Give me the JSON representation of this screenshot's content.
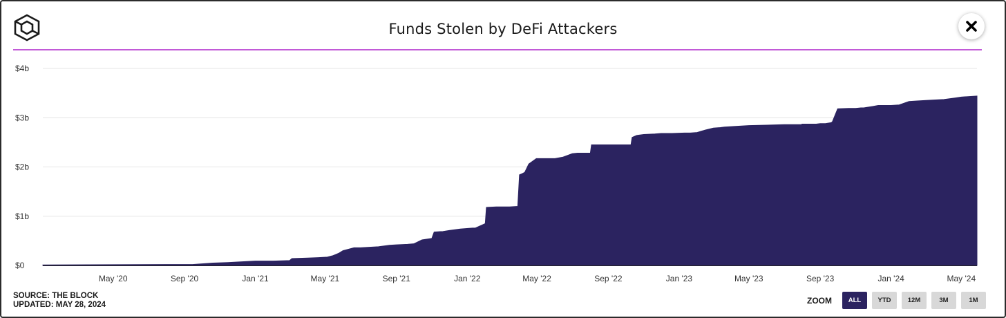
{
  "header": {
    "title": "Funds Stolen by DeFi Attackers",
    "close_icon": "close-icon",
    "logo_icon": "the-block-cube-logo-icon"
  },
  "colors": {
    "area_fill": "#2b2360",
    "accent_line": "#c25ad8",
    "grid": "#e6e6e6",
    "tick_text": "#333333"
  },
  "footer": {
    "source": "SOURCE: THE BLOCK",
    "updated": "UPDATED: MAY 28, 2024"
  },
  "zoom": {
    "label": "ZOOM",
    "options": [
      "ALL",
      "YTD",
      "12M",
      "3M",
      "1M"
    ],
    "selected": "ALL"
  },
  "chart_data": {
    "type": "area",
    "title": "Funds Stolen by DeFi Attackers",
    "xlabel": "",
    "ylabel": "",
    "y_unit": "USD billions",
    "ylim": [
      0,
      4
    ],
    "y_ticks": [
      {
        "value": 0,
        "label": "$0"
      },
      {
        "value": 1,
        "label": "$1b"
      },
      {
        "value": 2,
        "label": "$2b"
      },
      {
        "value": 3,
        "label": "$3b"
      },
      {
        "value": 4,
        "label": "$4b"
      }
    ],
    "xlim": [
      "2020-01-01",
      "2024-05-28"
    ],
    "x_ticks": [
      {
        "date": "2020-05-01",
        "label": "May '20"
      },
      {
        "date": "2020-09-01",
        "label": "Sep '20"
      },
      {
        "date": "2021-01-01",
        "label": "Jan '21"
      },
      {
        "date": "2021-05-01",
        "label": "May '21"
      },
      {
        "date": "2021-09-01",
        "label": "Sep '21"
      },
      {
        "date": "2022-01-01",
        "label": "Jan '22"
      },
      {
        "date": "2022-05-01",
        "label": "May '22"
      },
      {
        "date": "2022-09-01",
        "label": "Sep '22"
      },
      {
        "date": "2023-01-01",
        "label": "Jan '23"
      },
      {
        "date": "2023-05-01",
        "label": "May '23"
      },
      {
        "date": "2023-09-01",
        "label": "Sep '23"
      },
      {
        "date": "2024-01-01",
        "label": "Jan '24"
      },
      {
        "date": "2024-05-01",
        "label": "May '24"
      }
    ],
    "grid": true,
    "legend": "none",
    "series": [
      {
        "x": [
          "2020-01-01",
          "2020-08-01",
          "2020-09-15",
          "2020-10-20",
          "2020-11-15",
          "2020-12-01",
          "2021-01-01",
          "2021-02-01",
          "2021-03-01",
          "2021-03-05",
          "2021-04-01",
          "2021-04-20",
          "2021-05-05",
          "2021-05-15",
          "2021-05-25",
          "2021-06-01",
          "2021-06-20",
          "2021-07-01",
          "2021-08-01",
          "2021-08-20",
          "2021-09-01",
          "2021-09-20",
          "2021-10-01",
          "2021-10-15",
          "2021-11-01",
          "2021-11-05",
          "2021-11-20",
          "2021-12-01",
          "2021-12-20",
          "2022-01-10",
          "2022-01-15",
          "2022-02-01",
          "2022-02-03",
          "2022-02-20",
          "2022-03-15",
          "2022-03-29",
          "2022-04-01",
          "2022-04-05",
          "2022-04-10",
          "2022-04-17",
          "2022-04-30",
          "2022-05-20",
          "2022-06-01",
          "2022-06-15",
          "2022-07-01",
          "2022-07-10",
          "2022-08-01",
          "2022-08-03",
          "2022-08-20",
          "2022-09-01",
          "2022-10-10",
          "2022-10-12",
          "2022-10-20",
          "2022-11-01",
          "2022-11-20",
          "2022-12-01",
          "2022-12-20",
          "2023-01-10",
          "2023-01-20",
          "2023-02-01",
          "2023-02-15",
          "2023-03-01",
          "2023-03-13",
          "2023-03-20",
          "2023-04-01",
          "2023-05-01",
          "2023-06-01",
          "2023-07-01",
          "2023-07-30",
          "2023-08-01",
          "2023-08-15",
          "2023-08-25",
          "2023-09-01",
          "2023-09-10",
          "2023-09-20",
          "2023-09-22",
          "2023-10-01",
          "2023-10-20",
          "2023-11-01",
          "2023-11-10",
          "2023-11-15",
          "2023-12-01",
          "2023-12-10",
          "2023-12-31",
          "2024-01-01",
          "2024-01-15",
          "2024-02-01",
          "2024-02-15",
          "2024-03-01",
          "2024-03-15",
          "2024-04-01",
          "2024-04-20",
          "2024-05-01",
          "2024-05-28"
        ],
        "y": [
          0.01,
          0.02,
          0.02,
          0.05,
          0.06,
          0.07,
          0.09,
          0.09,
          0.1,
          0.14,
          0.15,
          0.16,
          0.17,
          0.2,
          0.25,
          0.3,
          0.36,
          0.36,
          0.38,
          0.41,
          0.42,
          0.43,
          0.44,
          0.52,
          0.55,
          0.68,
          0.69,
          0.71,
          0.74,
          0.76,
          0.76,
          0.85,
          1.18,
          1.19,
          1.19,
          1.2,
          1.84,
          1.86,
          1.89,
          2.06,
          2.17,
          2.17,
          2.17,
          2.2,
          2.27,
          2.28,
          2.28,
          2.45,
          2.45,
          2.45,
          2.45,
          2.6,
          2.64,
          2.66,
          2.67,
          2.68,
          2.68,
          2.69,
          2.69,
          2.7,
          2.75,
          2.79,
          2.8,
          2.81,
          2.82,
          2.84,
          2.85,
          2.86,
          2.86,
          2.87,
          2.87,
          2.87,
          2.88,
          2.88,
          2.9,
          2.92,
          3.18,
          3.19,
          3.19,
          3.2,
          3.2,
          3.23,
          3.25,
          3.25,
          3.25,
          3.26,
          3.33,
          3.34,
          3.35,
          3.36,
          3.37,
          3.4,
          3.42,
          3.44
        ]
      }
    ]
  }
}
